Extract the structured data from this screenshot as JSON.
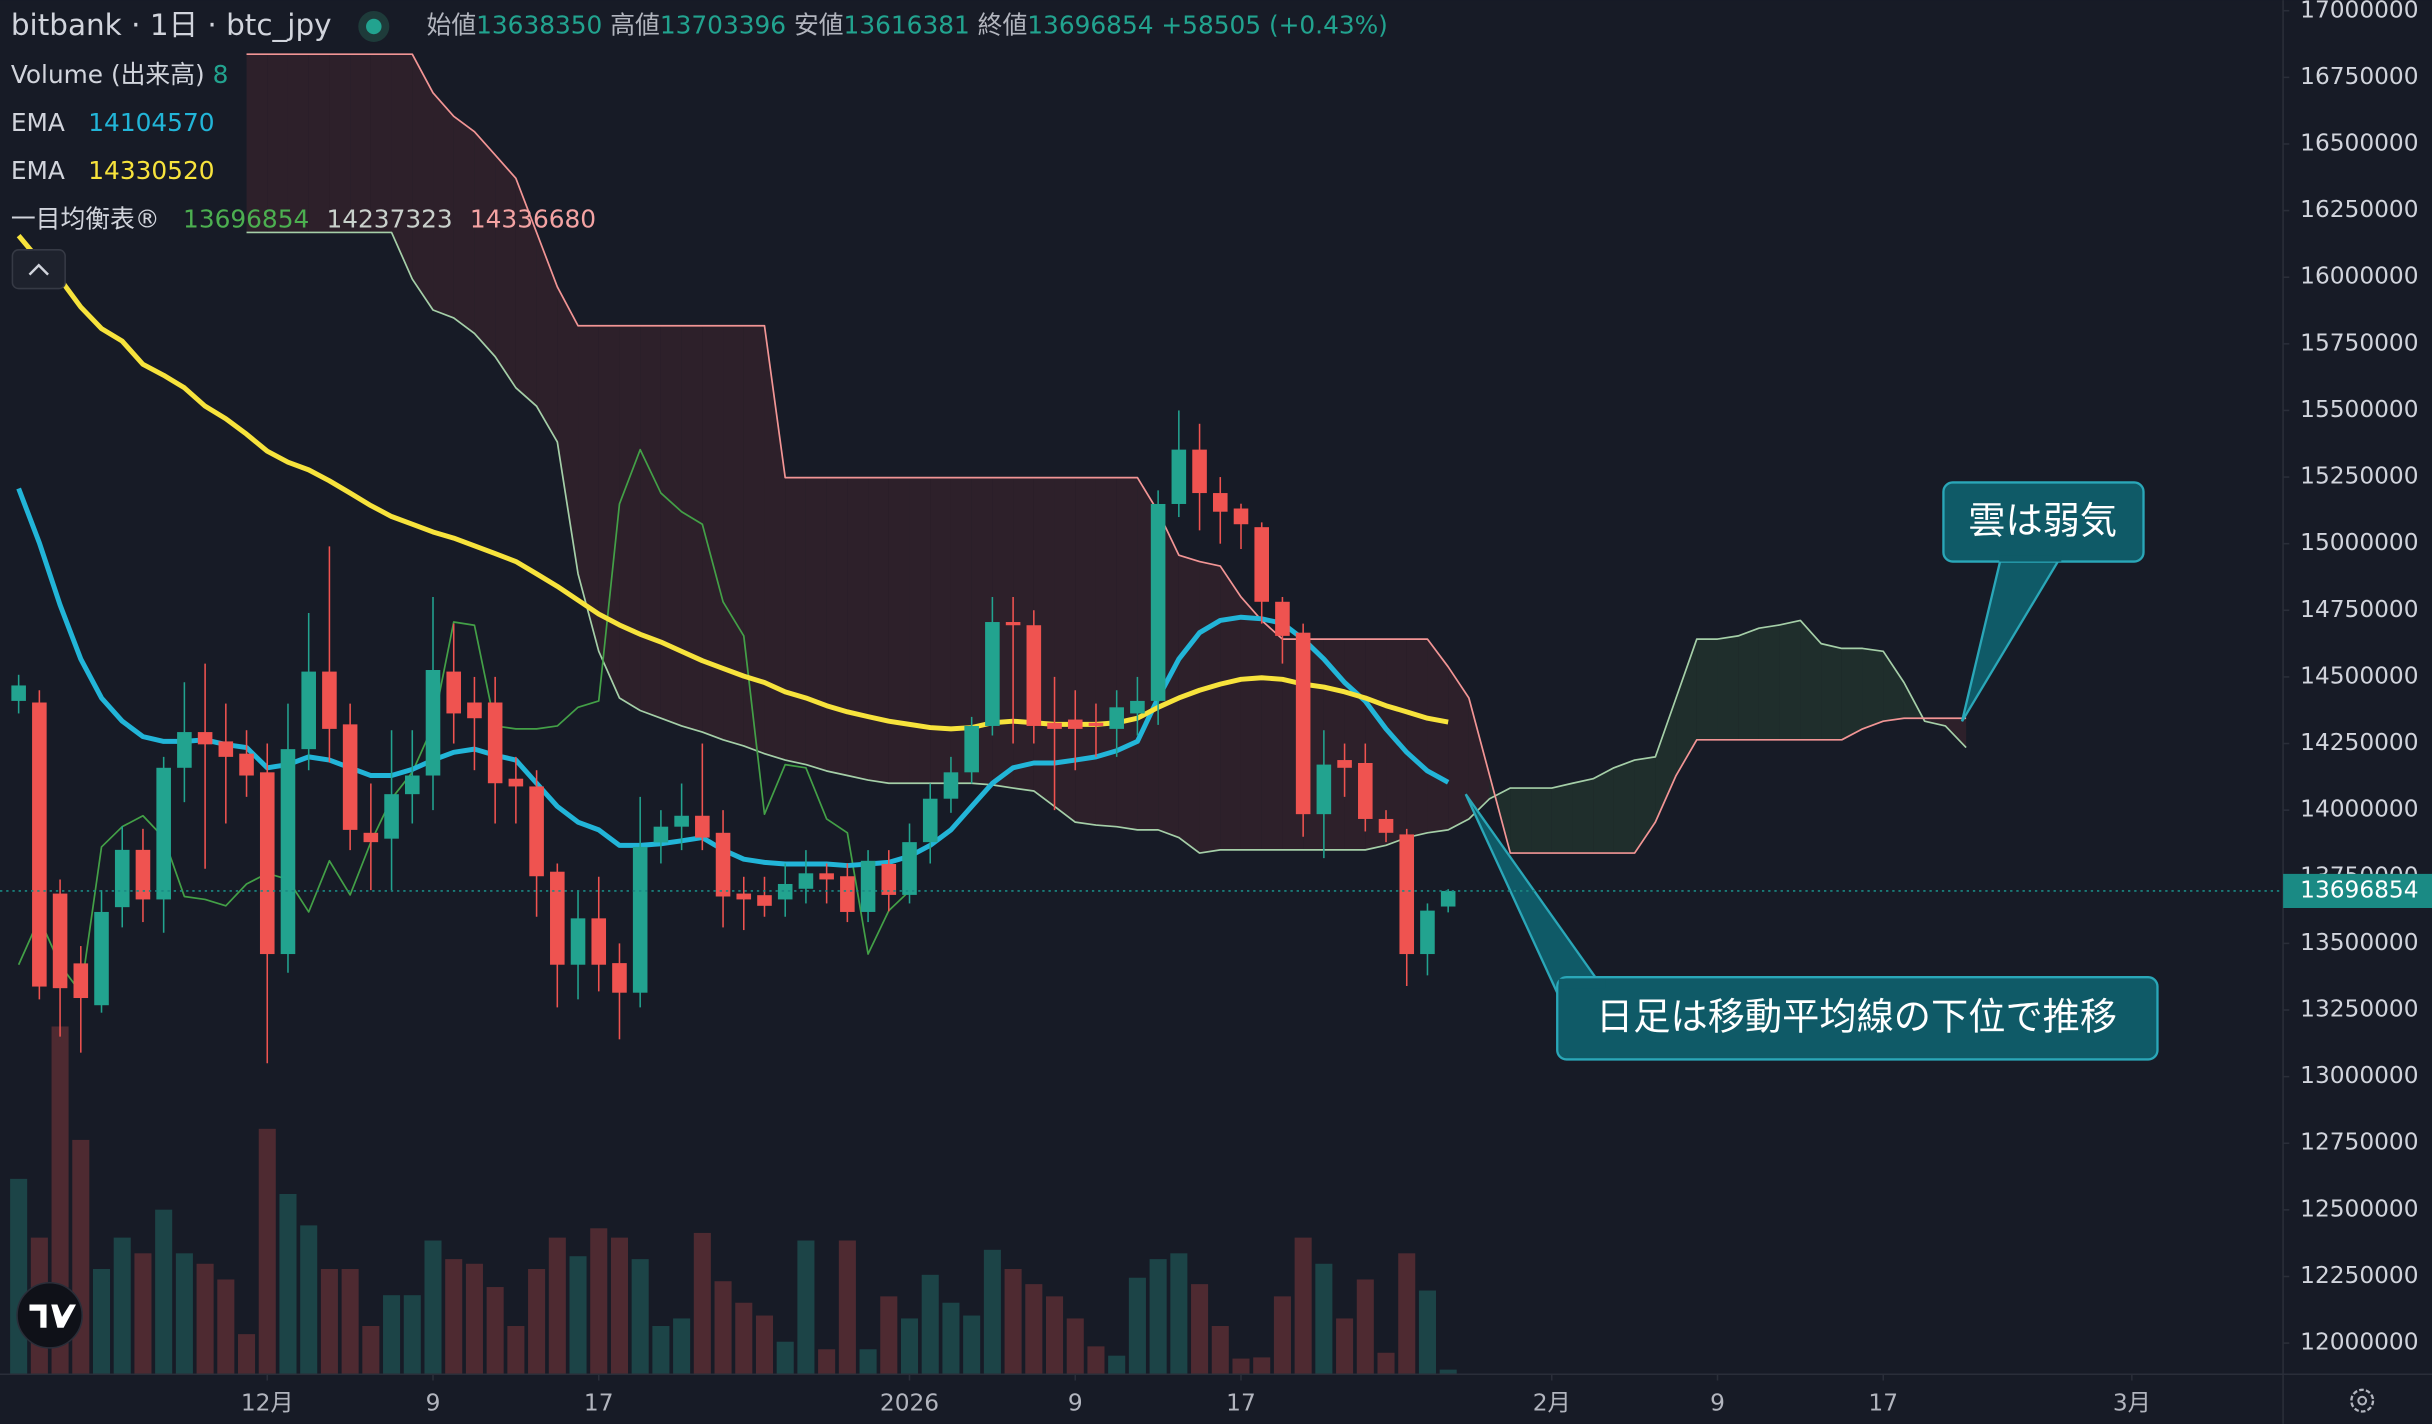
{
  "header": {
    "symbol": "bitbank · 1日 · btc_jpy",
    "ohlc": [
      {
        "label": "始値",
        "value": 13638350
      },
      {
        "label": "高値",
        "value": 13703396
      },
      {
        "label": "安値",
        "value": 13616381
      },
      {
        "label": "終値",
        "value": 13696854
      }
    ],
    "change": "+58505",
    "change_pct": "(+0.43%)"
  },
  "chart_data": {
    "type": "candlestick",
    "x": [
      -12,
      -11,
      -10,
      -9,
      -8,
      -7,
      -6,
      -5,
      -4,
      -3,
      -2,
      -1,
      0,
      1,
      2,
      3,
      4,
      5,
      6,
      7,
      8,
      9,
      10,
      11,
      12,
      13,
      14,
      15,
      16,
      17,
      18,
      19,
      20,
      21,
      22,
      23,
      24,
      25,
      26,
      27,
      28,
      29,
      30,
      31,
      32,
      33,
      34,
      35,
      36,
      37,
      38,
      39,
      40,
      41,
      42,
      43,
      44,
      45,
      46,
      47,
      48,
      49,
      50,
      51,
      52,
      53,
      54,
      55,
      56,
      57
    ],
    "open": [
      14410000,
      14404000,
      13687000,
      13425000,
      13268000,
      13636000,
      13851000,
      13665000,
      14159000,
      14293000,
      14258000,
      14212000,
      14142000,
      13460000,
      14229000,
      14520000,
      14322000,
      13915000,
      13893000,
      14060000,
      14130000,
      14520000,
      14404000,
      14404000,
      14118000,
      14089000,
      13769000,
      13420000,
      13594000,
      13426000,
      13315000,
      13879000,
      13938000,
      13979000,
      13915000,
      13687000,
      13681000,
      13665000,
      13705000,
      13763000,
      13752000,
      13618000,
      13798000,
      13682000,
      13880000,
      14043000,
      14142000,
      14316000,
      14706000,
      14694000,
      14328000,
      14340000,
      14328000,
      14305000,
      14363000,
      14410000,
      15149000,
      15353000,
      15190000,
      15132000,
      15062000,
      14782000,
      14666000,
      13985000,
      14188000,
      14177000,
      13967000,
      13909000,
      13460000,
      13638350
    ],
    "high": [
      14508000,
      14450000,
      13740000,
      13490000,
      13700000,
      13940000,
      13930000,
      14200000,
      14480000,
      14550000,
      14400000,
      14300000,
      14250000,
      14400000,
      14740000,
      14990000,
      14400000,
      14100000,
      14300000,
      14300000,
      14800000,
      14700000,
      14500000,
      14500000,
      14200000,
      14150000,
      13800000,
      13700000,
      13750000,
      13500000,
      14050000,
      14000000,
      14100000,
      14250000,
      14000000,
      13750000,
      13750000,
      13800000,
      13850000,
      13800000,
      13800000,
      13850000,
      13850000,
      13950000,
      14100000,
      14200000,
      14350000,
      14800000,
      14800000,
      14750000,
      14500000,
      14450000,
      14400000,
      14450000,
      14500000,
      15200000,
      15500000,
      15450000,
      15250000,
      15150000,
      15080000,
      14800000,
      14700000,
      14300000,
      14250000,
      14250000,
      14000000,
      13930000,
      13650000,
      13703396
    ],
    "low": [
      14363000,
      13290000,
      13150000,
      13090000,
      13240000,
      13560000,
      13580000,
      13540000,
      14030000,
      13780000,
      13950000,
      14050000,
      13050000,
      13390000,
      14150000,
      14180000,
      13850000,
      13700000,
      13700000,
      13950000,
      14000000,
      14250000,
      14150000,
      13950000,
      13950000,
      13600000,
      13260000,
      13290000,
      13320000,
      13140000,
      13260000,
      13800000,
      13850000,
      13850000,
      13560000,
      13550000,
      13600000,
      13600000,
      13650000,
      13650000,
      13580000,
      13580000,
      13620000,
      13650000,
      13800000,
      13990000,
      14100000,
      14280000,
      14250000,
      14250000,
      14000000,
      14150000,
      14200000,
      14200000,
      14280000,
      14320000,
      15100000,
      15050000,
      15000000,
      14980000,
      14700000,
      14550000,
      13900000,
      13820000,
      14050000,
      13920000,
      13880000,
      13340000,
      13380000,
      13616381
    ],
    "close": [
      14468000,
      13338000,
      13332000,
      13295000,
      13618000,
      13851000,
      13665000,
      14159000,
      14293000,
      14247000,
      14200000,
      14130000,
      13460000,
      14229000,
      14520000,
      14305000,
      13926000,
      13880000,
      14060000,
      14130000,
      14526000,
      14363000,
      14345000,
      14101000,
      14089000,
      13752000,
      13420000,
      13594000,
      13420000,
      13315000,
      13862000,
      13938000,
      13979000,
      13897000,
      13676000,
      13665000,
      13641000,
      13723000,
      13763000,
      13740000,
      13618000,
      13810000,
      13682000,
      13880000,
      14043000,
      14142000,
      14316000,
      14706000,
      14694000,
      14316000,
      14305000,
      14305000,
      14316000,
      14386000,
      14410000,
      15149000,
      15353000,
      15190000,
      15120000,
      15073000,
      14782000,
      14654000,
      13985000,
      14171000,
      14159000,
      13967000,
      13915000,
      13460000,
      13623000,
      13696854
    ],
    "up_color": "#22a38f",
    "down_color": "#ef5350",
    "volume": {
      "name": "Volume (出来高)",
      "up_color": "#1c4447",
      "down_color": "#4e2a31",
      "vlim": [
        0,
        800
      ],
      "values": [
        336,
        235,
        598,
        403,
        181,
        235,
        208,
        283,
        208,
        190,
        163,
        69,
        422,
        310,
        256,
        181,
        181,
        83,
        136,
        136,
        230,
        198,
        190,
        150,
        83,
        181,
        235,
        203,
        251,
        235,
        198,
        83,
        96,
        243,
        160,
        123,
        101,
        56,
        230,
        43,
        230,
        43,
        134,
        96,
        171,
        123,
        101,
        214,
        181,
        155,
        134,
        96,
        48,
        32,
        166,
        198,
        208,
        155,
        83,
        27,
        29,
        134,
        235,
        190,
        96,
        163,
        37,
        208,
        144,
        8
      ]
    },
    "ema": [
      {
        "name": "EMA",
        "color": "#22b5d8",
        "values": [
          15207000,
          15003000,
          14770000,
          14567000,
          14421000,
          14334000,
          14276000,
          14258000,
          14258000,
          14264000,
          14246000,
          14235000,
          14159000,
          14171000,
          14200000,
          14188000,
          14159000,
          14130000,
          14130000,
          14153000,
          14188000,
          14217000,
          14229000,
          14206000,
          14188000,
          14101000,
          14014000,
          13955000,
          13926000,
          13868000,
          13868000,
          13874000,
          13885000,
          13897000,
          13851000,
          13816000,
          13804000,
          13798000,
          13798000,
          13798000,
          13792000,
          13798000,
          13804000,
          13827000,
          13868000,
          13926000,
          14014000,
          14101000,
          14159000,
          14177000,
          14177000,
          14188000,
          14200000,
          14223000,
          14258000,
          14421000,
          14567000,
          14666000,
          14712000,
          14724000,
          14718000,
          14701000,
          14642000,
          14567000,
          14479000,
          14409000,
          14305000,
          14217000,
          14147000,
          14104570
        ]
      },
      {
        "name": "EMA",
        "color": "#f7e33c",
        "values": [
          16156000,
          16063000,
          15993000,
          15888000,
          15807000,
          15760000,
          15673000,
          15632000,
          15585000,
          15516000,
          15469000,
          15411000,
          15347000,
          15306000,
          15277000,
          15236000,
          15190000,
          15143000,
          15102000,
          15073000,
          15044000,
          15021000,
          14992000,
          14963000,
          14933000,
          14887000,
          14840000,
          14788000,
          14736000,
          14695000,
          14660000,
          14631000,
          14596000,
          14561000,
          14532000,
          14503000,
          14479000,
          14444000,
          14421000,
          14392000,
          14369000,
          14351000,
          14334000,
          14322000,
          14310000,
          14305000,
          14310000,
          14328000,
          14334000,
          14328000,
          14322000,
          14322000,
          14322000,
          14328000,
          14345000,
          14386000,
          14421000,
          14450000,
          14473000,
          14491000,
          14497000,
          14491000,
          14473000,
          14462000,
          14444000,
          14421000,
          14392000,
          14369000,
          14345000,
          14330520
        ]
      }
    ],
    "ichimoku": {
      "name": "一目均衡表®",
      "legend_values": [
        13696854,
        14237323,
        14336680
      ],
      "legend_colors": [
        "#4caf50",
        "#c9d1cc",
        "#f4a3a3"
      ],
      "lagging": {
        "color": "#43a047",
        "values": [
          13420000,
          13594000,
          13420000,
          13315000,
          13862000,
          13938000,
          13979000,
          13897000,
          13676000,
          13665000,
          13641000,
          13723000,
          13763000,
          13740000,
          13618000,
          13810000,
          13682000,
          13880000,
          14043000,
          14142000,
          14316000,
          14706000,
          14694000,
          14316000,
          14305000,
          14305000,
          14316000,
          14386000,
          14410000,
          15149000,
          15353000,
          15190000,
          15120000,
          15073000,
          14782000,
          14654000,
          13985000,
          14171000,
          14159000,
          13967000,
          13915000,
          13460000,
          13623000,
          13696854,
          null,
          null,
          null,
          null,
          null,
          null,
          null,
          null,
          null,
          null,
          null,
          null,
          null,
          null,
          null,
          null,
          null,
          null,
          null,
          null,
          null,
          null,
          null,
          null,
          null,
          null
        ]
      },
      "cloud_x": [
        -1,
        0,
        1,
        2,
        3,
        4,
        5,
        6,
        7,
        8,
        9,
        10,
        11,
        12,
        13,
        14,
        15,
        16,
        17,
        18,
        19,
        20,
        21,
        22,
        23,
        24,
        25,
        26,
        27,
        28,
        29,
        30,
        31,
        32,
        33,
        34,
        35,
        36,
        37,
        38,
        39,
        40,
        41,
        42,
        43,
        44,
        45,
        46,
        47,
        48,
        49,
        50,
        51,
        52,
        53,
        54,
        55,
        56,
        57,
        58,
        59,
        60,
        61,
        62,
        63,
        64,
        65,
        66,
        67,
        68,
        69,
        70,
        71,
        72,
        73,
        74,
        75,
        76,
        77,
        78,
        79,
        80,
        81,
        82
      ],
      "span_a": {
        "color": "#a5cfa8",
        "fill": "#1f2e2c",
        "values": [
          16168000,
          16168000,
          16168000,
          16168000,
          16168000,
          16168000,
          16168000,
          16168000,
          15993000,
          15877000,
          15847000,
          15789000,
          15702000,
          15585000,
          15516000,
          15382000,
          14887000,
          14596000,
          14421000,
          14374000,
          14345000,
          14316000,
          14293000,
          14264000,
          14241000,
          14212000,
          14188000,
          14171000,
          14147000,
          14130000,
          14113000,
          14101000,
          14101000,
          14101000,
          14101000,
          14101000,
          14095000,
          14083000,
          14072000,
          14014000,
          13955000,
          13944000,
          13938000,
          13926000,
          13926000,
          13897000,
          13839000,
          13851000,
          13851000,
          13851000,
          13851000,
          13851000,
          13851000,
          13851000,
          13851000,
          13868000,
          13897000,
          13915000,
          13926000,
          13967000,
          14043000,
          14083000,
          14083000,
          14083000,
          14101000,
          14118000,
          14159000,
          14188000,
          14200000,
          14421000,
          14642000,
          14642000,
          14654000,
          14683000,
          14695000,
          14712000,
          14625000,
          14607000,
          14607000,
          14596000,
          14479000,
          14334000,
          14316000,
          14235000
        ]
      },
      "span_b": {
        "color": "#f29595",
        "fill": "#2d202a",
        "values": [
          16837000,
          16837000,
          16837000,
          16837000,
          16837000,
          16837000,
          16837000,
          16837000,
          16837000,
          16692000,
          16604000,
          16546000,
          16459000,
          16371000,
          16168000,
          15964000,
          15818000,
          15818000,
          15818000,
          15818000,
          15818000,
          15818000,
          15818000,
          15818000,
          15818000,
          15818000,
          15248000,
          15248000,
          15248000,
          15248000,
          15248000,
          15248000,
          15248000,
          15248000,
          15248000,
          15248000,
          15248000,
          15248000,
          15248000,
          15248000,
          15248000,
          15248000,
          15248000,
          15248000,
          15120000,
          14957000,
          14933000,
          14916000,
          14800000,
          14712000,
          14642000,
          14642000,
          14642000,
          14642000,
          14642000,
          14642000,
          14642000,
          14642000,
          14538000,
          14421000,
          14130000,
          13839000,
          13839000,
          13839000,
          13839000,
          13839000,
          13839000,
          13839000,
          13955000,
          14130000,
          14264000,
          14264000,
          14264000,
          14264000,
          14264000,
          14264000,
          14264000,
          14264000,
          14305000,
          14334000,
          14345000,
          14345000,
          14345000,
          14345000
        ]
      }
    },
    "price_line_color": "#1a8a84",
    "xlim": [
      -12.9,
      97.3
    ],
    "ylim": [
      11883000,
      17040000
    ],
    "xticks": [
      {
        "value": 0,
        "label": "12月"
      },
      {
        "value": 8,
        "label": "9"
      },
      {
        "value": 16,
        "label": "17"
      },
      {
        "value": 31,
        "label": "2026"
      },
      {
        "value": 39,
        "label": "9"
      },
      {
        "value": 47,
        "label": "17"
      },
      {
        "value": 62,
        "label": "2月"
      },
      {
        "value": 70,
        "label": "9"
      },
      {
        "value": 78,
        "label": "17"
      },
      {
        "value": 90,
        "label": "3月"
      }
    ],
    "yticks": [
      12000000,
      12250000,
      12500000,
      12750000,
      13000000,
      13250000,
      13500000,
      13750000,
      14000000,
      14250000,
      14500000,
      14750000,
      15000000,
      15250000,
      15500000,
      15750000,
      16000000,
      16250000,
      16500000,
      16750000,
      17000000
    ],
    "annotations": [
      {
        "text": "雲は弱気"
      },
      {
        "text": "日足は移動平均線の下位で推移"
      }
    ]
  }
}
